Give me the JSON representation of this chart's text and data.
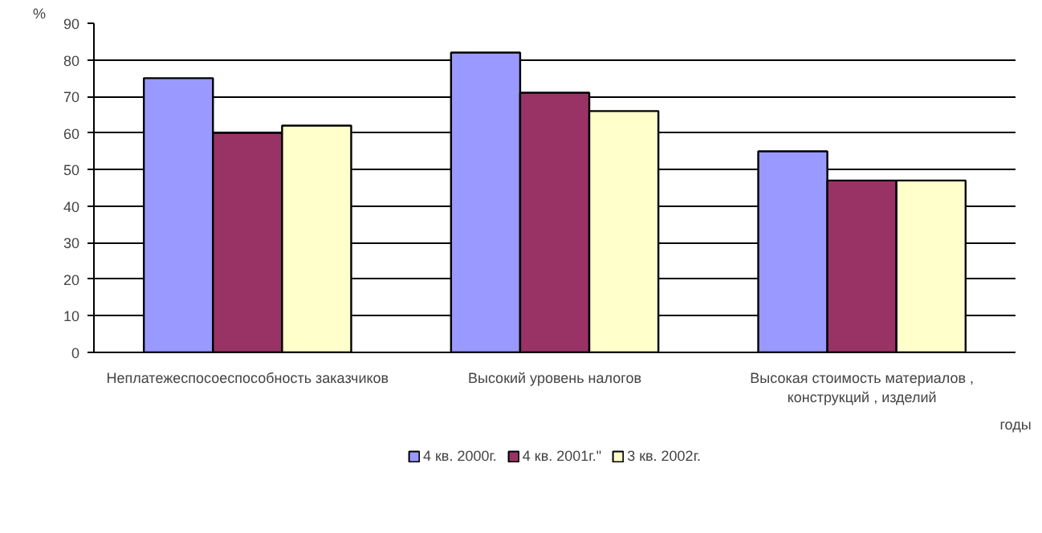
{
  "chart_data": {
    "type": "bar",
    "ylabel": "%",
    "xlabel": "годы",
    "categories": [
      "Неплатежеспосоеспособность заказчиков",
      "Высокий уровень налогов",
      "Высокая стоимость материалов ,\nконструкций , изделий"
    ],
    "series": [
      {
        "name": "4 кв. 2000г.",
        "color": "#9999ff",
        "values": [
          75,
          82,
          55
        ]
      },
      {
        "name": "4 кв. 2001г.\"",
        "color": "#993366",
        "values": [
          60,
          71,
          47
        ]
      },
      {
        "name": "3 кв. 2002г.",
        "color": "#ffffcc",
        "values": [
          62,
          66,
          47
        ]
      }
    ],
    "ylim": [
      0,
      90
    ],
    "yticks": [
      0,
      10,
      20,
      30,
      40,
      50,
      60,
      70,
      80,
      90
    ],
    "grid": "y",
    "legend": "bottom"
  }
}
